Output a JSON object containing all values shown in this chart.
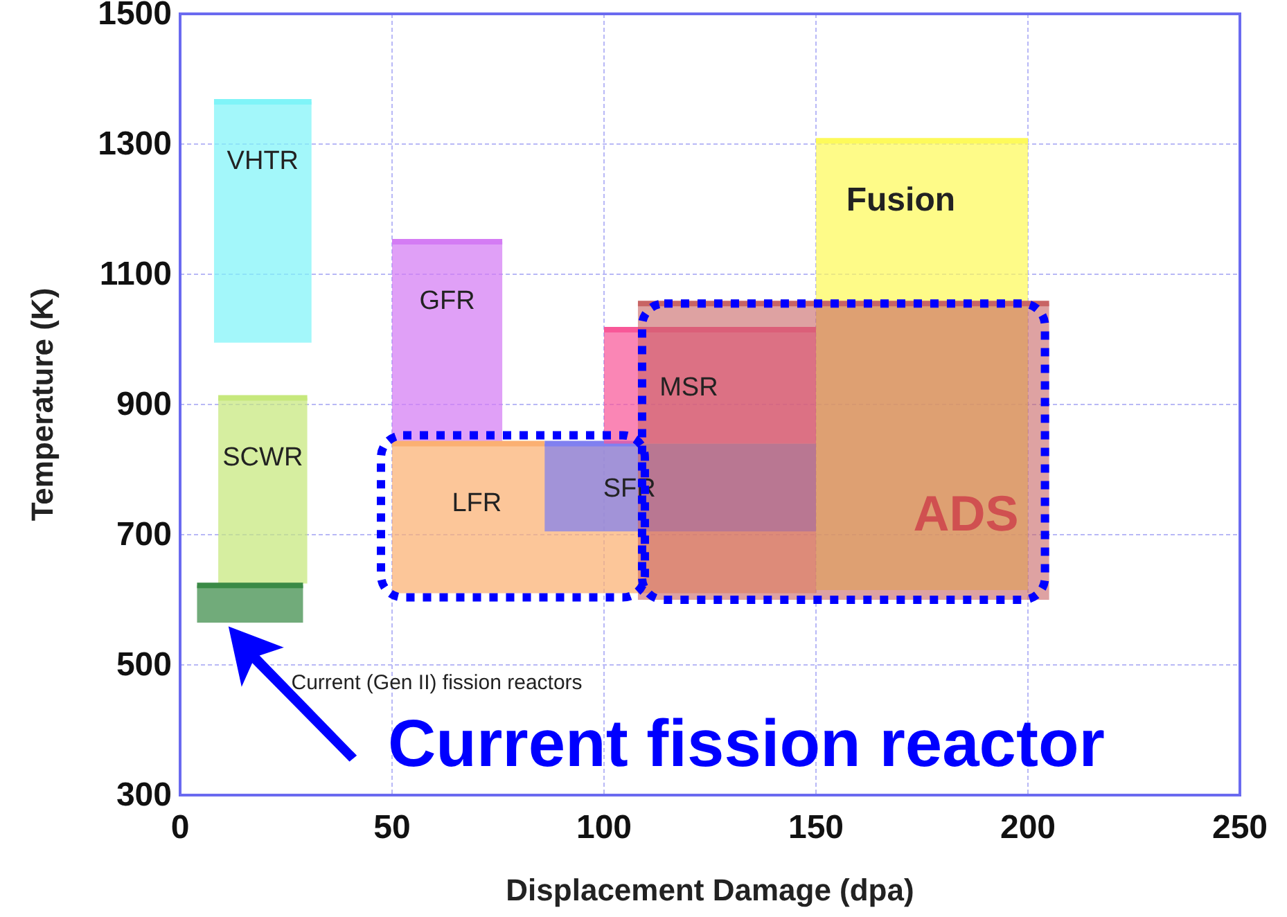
{
  "chart_data": {
    "type": "line",
    "xlabel": "Displacement Damage (dpa)",
    "ylabel": "Temperature (K)",
    "xlim": [
      0,
      250
    ],
    "xticks": [
      0,
      50,
      100,
      150,
      200,
      250
    ],
    "ylim": [
      300,
      1500
    ],
    "yticks": [
      300,
      500,
      700,
      900,
      1100,
      1300,
      1500
    ],
    "grid": true,
    "series": [
      {
        "name": "VHTR",
        "color": "#80f4f8",
        "x": [
          8,
          31
        ],
        "values": [
          1365,
          1365
        ],
        "upper": [
          1365,
          1365
        ],
        "lower": [
          995,
          995
        ]
      },
      {
        "name": "SCWR",
        "color": "#c6e87c",
        "x": [
          9,
          30
        ],
        "values": [
          910,
          910
        ],
        "upper": [
          910,
          910
        ],
        "lower": [
          625,
          625
        ]
      },
      {
        "color": "#3a8a46",
        "x": [
          4,
          29
        ],
        "values": [
          622,
          622
        ],
        "upper": [
          622,
          622
        ],
        "lower": [
          565,
          565
        ]
      },
      {
        "name": "GFR",
        "color": "#d47cf4",
        "x": [
          50,
          76
        ],
        "values": [
          1150,
          1150
        ],
        "upper": [
          1150,
          1150
        ],
        "lower": [
          840,
          840
        ]
      },
      {
        "name": "LFR",
        "color": "#fbb072",
        "x": [
          50,
          86,
          150
        ],
        "values": [
          840,
          840,
          null
        ],
        "upper": [
          840,
          840,
          840
        ],
        "lower": [
          610,
          610,
          610
        ]
      },
      {
        "name": "SFR",
        "color": "#8080f0",
        "x": [
          86,
          108,
          150
        ],
        "values": [
          840,
          840,
          null
        ],
        "upper": [
          840,
          840,
          840
        ],
        "lower": [
          705,
          705,
          705
        ]
      },
      {
        "name": "MSR",
        "color": "#f85898",
        "x": [
          100,
          150
        ],
        "values": [
          1015,
          1015
        ],
        "upper": [
          1015,
          1015
        ],
        "lower": [
          840,
          840
        ]
      },
      {
        "name": "Fusion",
        "color": "#fdfa5a",
        "x": [
          150,
          200
        ],
        "values": [
          1305,
          1305
        ],
        "upper": [
          1305,
          1305
        ],
        "lower": [
          615,
          615
        ]
      },
      {
        "name": "ADS",
        "color": "#c86464",
        "x": [
          108,
          205
        ],
        "values": [
          1055,
          1055
        ],
        "upper": [
          1055,
          1055
        ],
        "lower": [
          600,
          600
        ]
      }
    ],
    "annotations": [
      "Current (Gen II) fission reactors",
      "Current fission reactor"
    ]
  }
}
